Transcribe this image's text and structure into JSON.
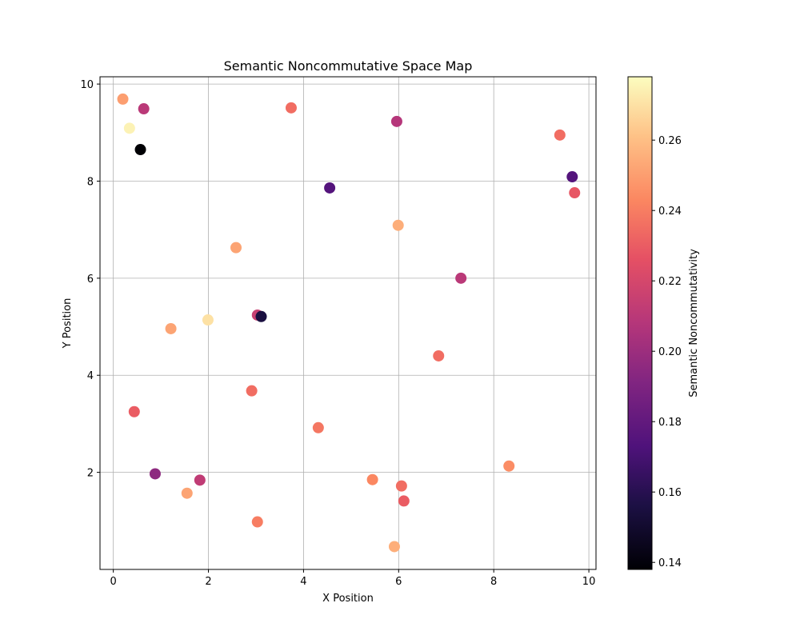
{
  "chart_data": {
    "type": "scatter",
    "title": "Semantic Noncommutative Space Map",
    "xlabel": "X Position",
    "ylabel": "Y Position",
    "xlim": [
      -0.28,
      10.15
    ],
    "ylim": [
      0.0,
      10.15
    ],
    "xticks": [
      0,
      2,
      4,
      6,
      8,
      10
    ],
    "yticks": [
      2,
      4,
      6,
      8,
      10
    ],
    "grid": true,
    "colormap": "magma",
    "colorbar": {
      "label": "Semantic Noncommutativity",
      "range": [
        0.138,
        0.278
      ],
      "ticks": [
        0.14,
        0.16,
        0.18,
        0.2,
        0.22,
        0.24,
        0.26
      ]
    },
    "points": [
      {
        "x": 0.2,
        "y": 9.69,
        "c": 0.25
      },
      {
        "x": 0.64,
        "y": 9.49,
        "c": 0.21
      },
      {
        "x": 0.34,
        "y": 9.09,
        "c": 0.275
      },
      {
        "x": 0.57,
        "y": 8.65,
        "c": 0.138
      },
      {
        "x": 3.74,
        "y": 9.51,
        "c": 0.235
      },
      {
        "x": 5.96,
        "y": 9.23,
        "c": 0.208
      },
      {
        "x": 9.39,
        "y": 8.95,
        "c": 0.235
      },
      {
        "x": 9.65,
        "y": 8.09,
        "c": 0.175
      },
      {
        "x": 9.7,
        "y": 7.76,
        "c": 0.228
      },
      {
        "x": 4.55,
        "y": 7.86,
        "c": 0.175
      },
      {
        "x": 5.99,
        "y": 7.09,
        "c": 0.255
      },
      {
        "x": 2.58,
        "y": 6.63,
        "c": 0.252
      },
      {
        "x": 7.31,
        "y": 6.0,
        "c": 0.21
      },
      {
        "x": 3.03,
        "y": 5.24,
        "c": 0.215
      },
      {
        "x": 3.11,
        "y": 5.21,
        "c": 0.155
      },
      {
        "x": 1.99,
        "y": 5.14,
        "c": 0.27
      },
      {
        "x": 1.21,
        "y": 4.96,
        "c": 0.252
      },
      {
        "x": 6.84,
        "y": 4.4,
        "c": 0.235
      },
      {
        "x": 0.44,
        "y": 3.25,
        "c": 0.23
      },
      {
        "x": 2.91,
        "y": 3.68,
        "c": 0.235
      },
      {
        "x": 4.31,
        "y": 2.92,
        "c": 0.238
      },
      {
        "x": 0.88,
        "y": 1.97,
        "c": 0.195
      },
      {
        "x": 1.82,
        "y": 1.84,
        "c": 0.212
      },
      {
        "x": 1.55,
        "y": 1.57,
        "c": 0.252
      },
      {
        "x": 5.45,
        "y": 1.85,
        "c": 0.243
      },
      {
        "x": 6.06,
        "y": 1.72,
        "c": 0.235
      },
      {
        "x": 6.11,
        "y": 1.41,
        "c": 0.23
      },
      {
        "x": 8.32,
        "y": 2.13,
        "c": 0.245
      },
      {
        "x": 3.03,
        "y": 0.98,
        "c": 0.24
      },
      {
        "x": 5.91,
        "y": 0.47,
        "c": 0.255
      }
    ]
  }
}
